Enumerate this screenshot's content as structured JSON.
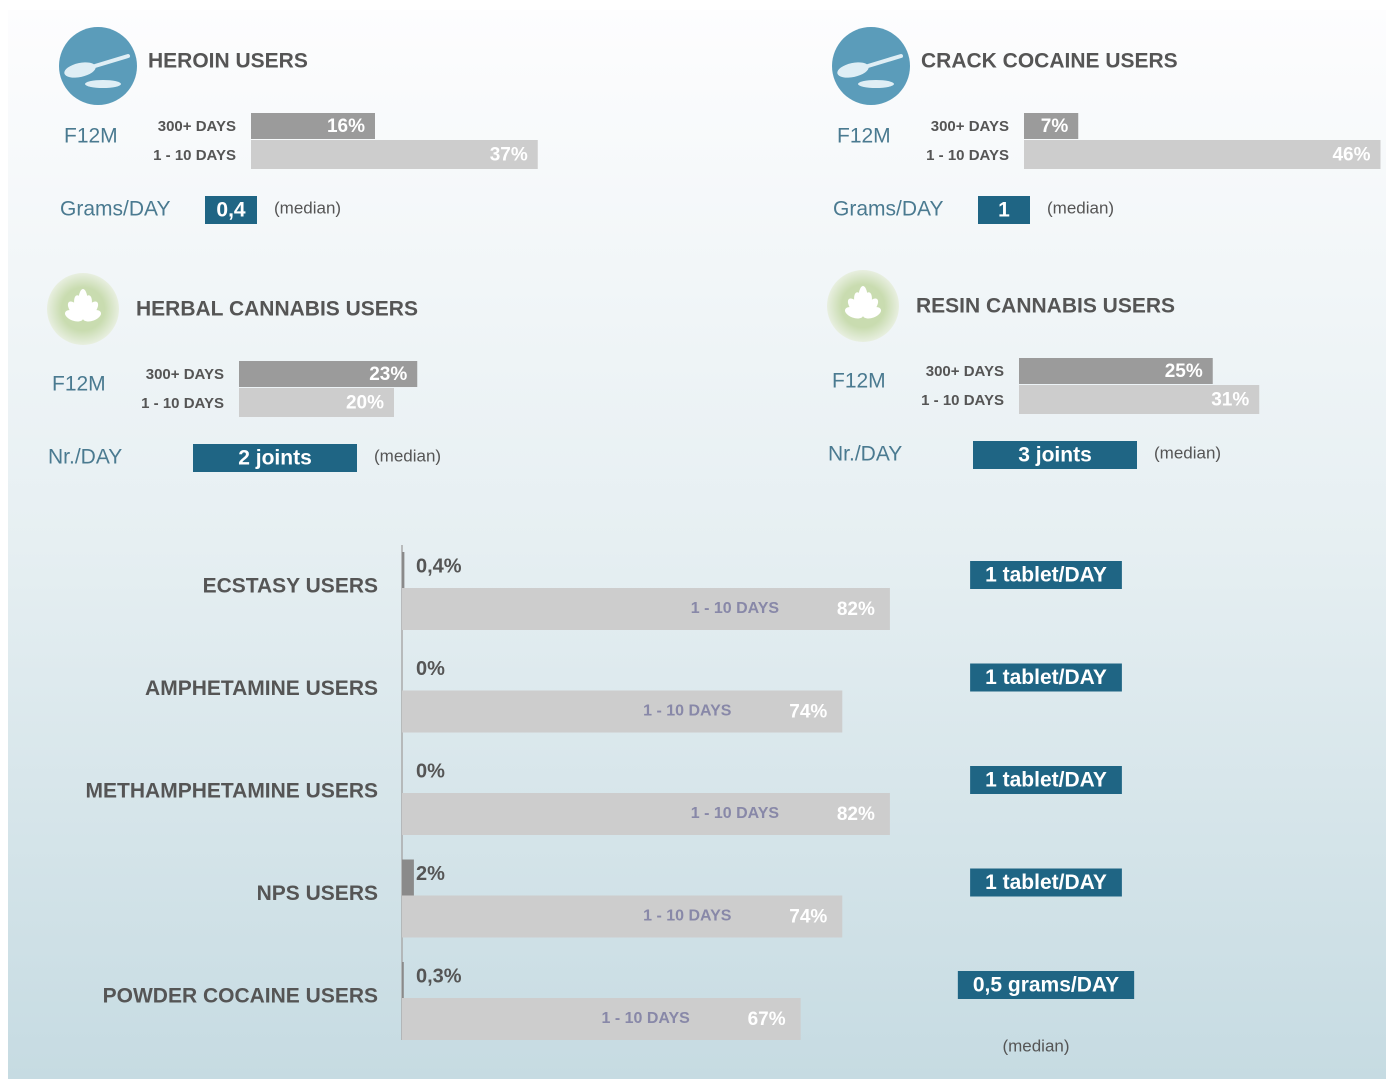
{
  "panels": [
    {
      "title": "HEROIN USERS",
      "period": "F12M",
      "bars": [
        {
          "label": "300+ DAYS",
          "value": 16,
          "value_label": "16%"
        },
        {
          "label": "1 - 10 DAYS",
          "value": 37,
          "value_label": "37%"
        }
      ],
      "measure_label": "Grams/DAY",
      "measure_value": "0,4",
      "note": "(median)"
    },
    {
      "title": "CRACK COCAINE USERS",
      "period": "F12M",
      "bars": [
        {
          "label": "300+ DAYS",
          "value": 7,
          "value_label": "7%"
        },
        {
          "label": "1 - 10 DAYS",
          "value": 46,
          "value_label": "46%"
        }
      ],
      "measure_label": "Grams/DAY",
      "measure_value": "1",
      "note": "(median)"
    },
    {
      "title": "HERBAL CANNABIS USERS",
      "period": "F12M",
      "bars": [
        {
          "label": "300+ DAYS",
          "value": 23,
          "value_label": "23%"
        },
        {
          "label": "1 - 10 DAYS",
          "value": 20,
          "value_label": "20%"
        }
      ],
      "measure_label": "Nr./DAY",
      "measure_value": "2 joints",
      "note": "(median)"
    },
    {
      "title": "RESIN CANNABIS USERS",
      "period": "F12M",
      "bars": [
        {
          "label": "300+ DAYS",
          "value": 25,
          "value_label": "25%"
        },
        {
          "label": "1 - 10 DAYS",
          "value": 31,
          "value_label": "31%"
        }
      ],
      "measure_label": "Nr./DAY",
      "measure_value": "3 joints",
      "note": "(median)"
    }
  ],
  "rows": [
    {
      "title": "ECSTASY USERS",
      "frequent": {
        "value": 0.4,
        "value_label": "0,4%"
      },
      "occasional": {
        "label": "1 - 10 DAYS",
        "value": 82,
        "value_label": "82%"
      },
      "dose": "1 tablet/DAY"
    },
    {
      "title": "AMPHETAMINE USERS",
      "frequent": {
        "value": 0,
        "value_label": "0%"
      },
      "occasional": {
        "label": "1 - 10 DAYS",
        "value": 74,
        "value_label": "74%"
      },
      "dose": "1 tablet/DAY"
    },
    {
      "title": "METHAMPHETAMINE USERS",
      "frequent": {
        "value": 0,
        "value_label": "0%"
      },
      "occasional": {
        "label": "1 - 10 DAYS",
        "value": 82,
        "value_label": "82%"
      },
      "dose": "1 tablet/DAY"
    },
    {
      "title": "NPS USERS",
      "frequent": {
        "value": 2,
        "value_label": "2%"
      },
      "occasional": {
        "label": "1 - 10 DAYS",
        "value": 74,
        "value_label": "74%"
      },
      "dose": "1 tablet/DAY"
    },
    {
      "title": "POWDER COCAINE USERS",
      "frequent": {
        "value": 0.3,
        "value_label": "0,3%"
      },
      "occasional": {
        "label": "1 - 10 DAYS",
        "value": 67,
        "value_label": "67%"
      },
      "dose": "0,5 grams/DAY"
    }
  ],
  "note": "(median)"
}
